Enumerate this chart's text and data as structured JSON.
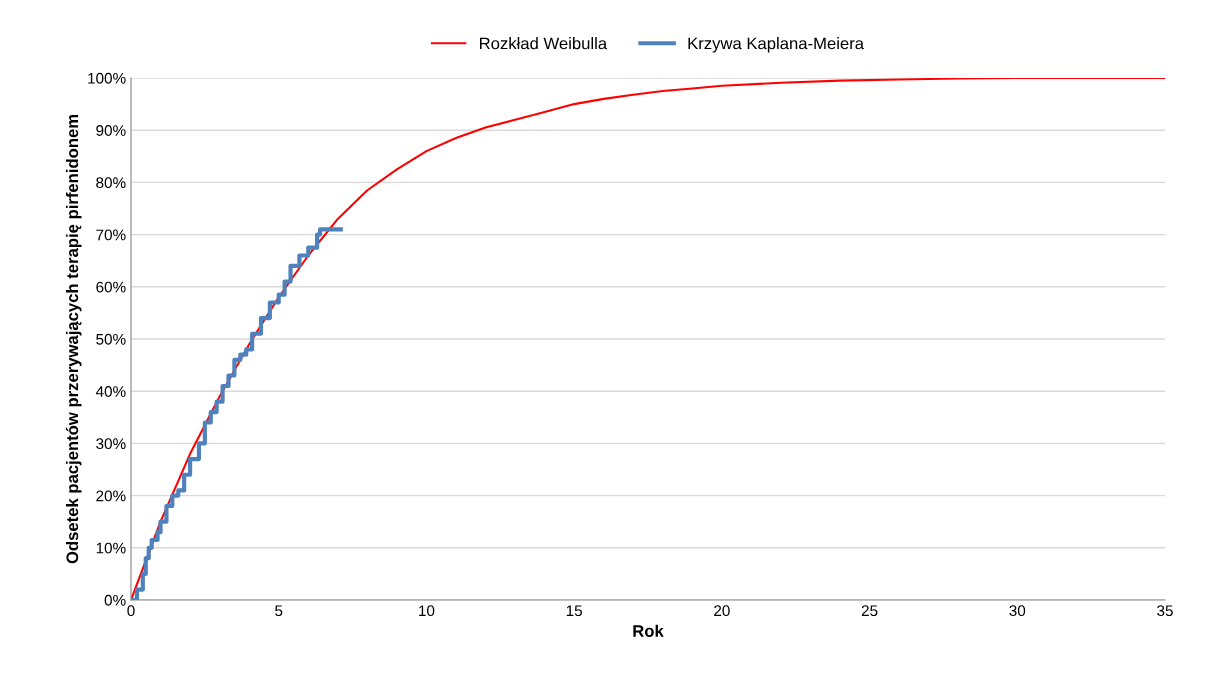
{
  "chart_data": {
    "type": "line",
    "xlabel": "Rok",
    "ylabel": "Odsetek pacjentów przerywających terapię pirfenidonem",
    "xlim": [
      0,
      35
    ],
    "xticks": [
      0,
      5,
      10,
      15,
      20,
      25,
      30,
      35
    ],
    "ylim": [
      0,
      100
    ],
    "yticks": [
      {
        "value": 0,
        "label": "0%"
      },
      {
        "value": 10,
        "label": "10%"
      },
      {
        "value": 20,
        "label": "20%"
      },
      {
        "value": 30,
        "label": "30%"
      },
      {
        "value": 40,
        "label": "40%"
      },
      {
        "value": 50,
        "label": "50%"
      },
      {
        "value": 60,
        "label": "60%"
      },
      {
        "value": 70,
        "label": "70%"
      },
      {
        "value": 80,
        "label": "80%"
      },
      {
        "value": 90,
        "label": "90%"
      },
      {
        "value": 100,
        "label": "100%"
      }
    ],
    "grid": "y",
    "legend": "top",
    "marker": "none",
    "line_style": "solid",
    "series": [
      {
        "name": "Rozkład Weibulla",
        "color": "#ff0000",
        "x": [
          0,
          1,
          2,
          3,
          4,
          5,
          6,
          7,
          8,
          9,
          10,
          11,
          12,
          13,
          14,
          15,
          16,
          17,
          18,
          19,
          20,
          22,
          24,
          26,
          28,
          30,
          35
        ],
        "values": [
          0,
          15,
          28,
          39,
          49,
          58,
          66,
          73,
          78.5,
          82.5,
          86,
          88.5,
          90.5,
          92,
          93.5,
          95,
          96,
          96.8,
          97.5,
          98,
          98.5,
          99.1,
          99.5,
          99.7,
          99.9,
          100,
          100
        ]
      },
      {
        "name": "Krzywa Kaplana-Meiera",
        "color": "#4f81bd",
        "type": "step",
        "x": [
          0,
          0.2,
          0.4,
          0.5,
          0.6,
          0.7,
          0.9,
          1.0,
          1.2,
          1.4,
          1.6,
          1.8,
          2.0,
          2.3,
          2.5,
          2.7,
          2.9,
          3.1,
          3.3,
          3.5,
          3.7,
          3.9,
          4.1,
          4.4,
          4.7,
          5.0,
          5.2,
          5.4,
          5.7,
          6.0,
          6.3,
          6.4,
          7.1
        ],
        "values": [
          0,
          2,
          5,
          8,
          10,
          11.5,
          13,
          15,
          18,
          20,
          21,
          24,
          27,
          30,
          34,
          36,
          38,
          41,
          43,
          46,
          47,
          48,
          51,
          54,
          57,
          58.5,
          61,
          64,
          66,
          67.5,
          70,
          71,
          71
        ]
      }
    ]
  }
}
